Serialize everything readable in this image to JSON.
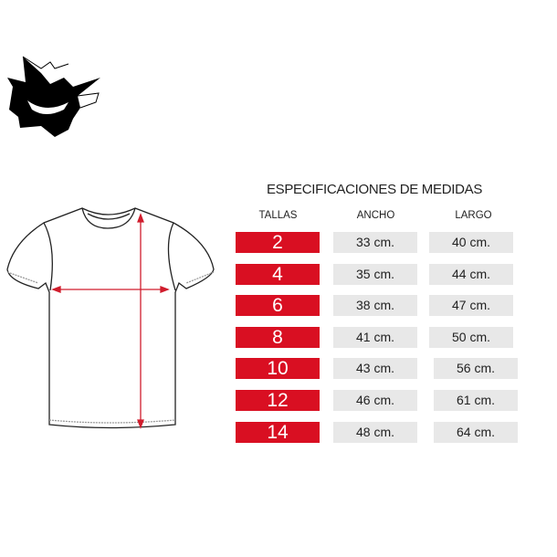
{
  "title": "ESPECIFICACIONES DE MEDIDAS",
  "headers": {
    "tallas": "TALLAS",
    "ancho": "ANCHO",
    "largo": "LARGO"
  },
  "rows": [
    {
      "talla": "2",
      "ancho": "33 cm.",
      "largo": "40 cm."
    },
    {
      "talla": "4",
      "ancho": "35 cm.",
      "largo": "44 cm."
    },
    {
      "talla": "6",
      "ancho": "38 cm.",
      "largo": "47 cm."
    },
    {
      "talla": "8",
      "ancho": "41 cm.",
      "largo": "50 cm."
    },
    {
      "talla": "10",
      "ancho": "43 cm.",
      "largo": "56 cm."
    },
    {
      "talla": "12",
      "ancho": "46 cm.",
      "largo": "61 cm."
    },
    {
      "talla": "14",
      "ancho": "48 cm.",
      "largo": "64 cm."
    }
  ],
  "colors": {
    "accent": "#d90f22",
    "cell_bg": "#e8e8e8"
  },
  "icons": {
    "logo": "ghost-grin-logo",
    "diagram": "tshirt-measurement-diagram"
  }
}
